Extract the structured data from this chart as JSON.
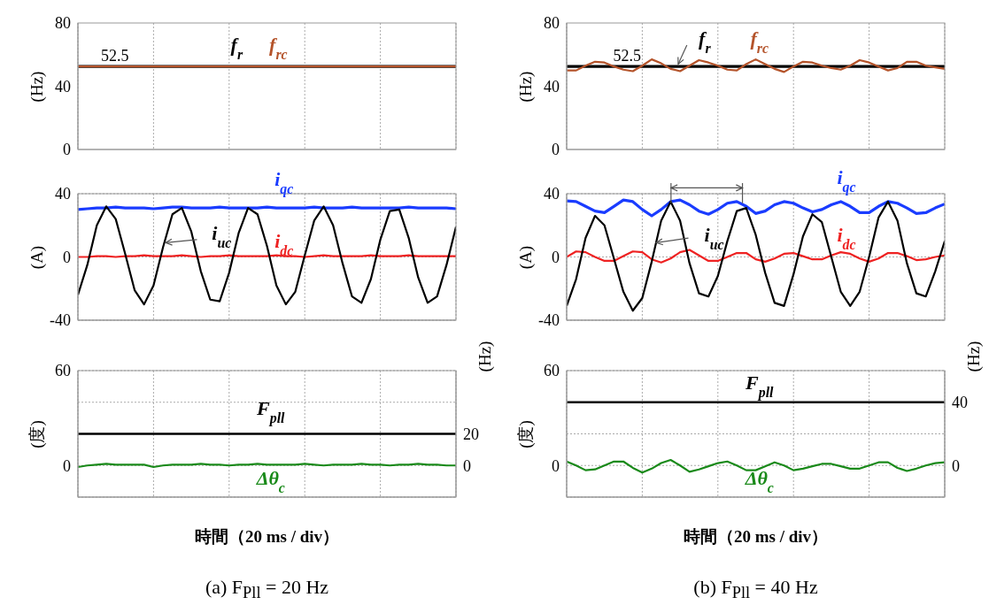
{
  "chart_data": [
    {
      "type": "line",
      "ylabel": "(Hz)",
      "categories": [
        null,
        null,
        null,
        null,
        null,
        null,
        null,
        null,
        null,
        null,
        null,
        null,
        null,
        null,
        null,
        null,
        null,
        null,
        null,
        null,
        null,
        null,
        null,
        null,
        null,
        null,
        null,
        null,
        null,
        null,
        null,
        null,
        null,
        null,
        null,
        null,
        null,
        null,
        null,
        null,
        null
      ],
      "ylim": [
        0,
        80
      ],
      "yticks": [
        0,
        40,
        80
      ],
      "grid": "x",
      "annotations": [
        {
          "text": "52.5",
          "y": 52.5
        }
      ],
      "series": [
        {
          "name": "f$_{r}$",
          "color": "#000000",
          "values": [
            52.5,
            52.5,
            52.5,
            52.5,
            52.5,
            52.5,
            52.5,
            52.5,
            52.5,
            52.5,
            52.5,
            52.5,
            52.5,
            52.5,
            52.5,
            52.5,
            52.5,
            52.5,
            52.5,
            52.5,
            52.5,
            52.5,
            52.5,
            52.5,
            52.5,
            52.5,
            52.5,
            52.5,
            52.5,
            52.5,
            52.5,
            52.5,
            52.5,
            52.5,
            52.5,
            52.5,
            52.5,
            52.5,
            52.5,
            52.5,
            52.5
          ]
        },
        {
          "name": "f$_{rc}$",
          "color": "#b4532a",
          "values": [
            52.5,
            52.5,
            52.5,
            52.5,
            52.5,
            52.5,
            52.5,
            52.5,
            52.5,
            52.5,
            52.5,
            52.5,
            52.5,
            52.5,
            52.5,
            52.5,
            52.5,
            52.5,
            52.5,
            52.5,
            52.5,
            52.5,
            52.5,
            52.5,
            52.5,
            52.5,
            52.5,
            52.5,
            52.5,
            52.5,
            52.5,
            52.5,
            52.5,
            52.5,
            52.5,
            52.5,
            52.5,
            52.5,
            52.5,
            52.5,
            52.5
          ]
        }
      ]
    },
    {
      "type": "line",
      "ylabel": "(A)",
      "categories": [
        null,
        null,
        null,
        null,
        null,
        null,
        null,
        null,
        null,
        null,
        null,
        null,
        null,
        null,
        null,
        null,
        null,
        null,
        null,
        null,
        null,
        null,
        null,
        null,
        null,
        null,
        null,
        null,
        null,
        null,
        null,
        null,
        null,
        null,
        null,
        null,
        null,
        null,
        null,
        null,
        null
      ],
      "ylim": [
        -40,
        40
      ],
      "yticks": [
        -40,
        0,
        40
      ],
      "grid": true,
      "series": [
        {
          "name": "i$_{qc}$",
          "color": "#1a3cff",
          "values": [
            30,
            30.5,
            31,
            31,
            31.5,
            31,
            31,
            31,
            30.5,
            31,
            31.5,
            31.5,
            31,
            31,
            31,
            31.5,
            31,
            31,
            31,
            31,
            31.5,
            31,
            31,
            31,
            31,
            31.5,
            31,
            31,
            31,
            31.5,
            31,
            31,
            31,
            31,
            31,
            31.5,
            31,
            31,
            31,
            31,
            30.5
          ]
        },
        {
          "name": "i$_{dc}$",
          "color": "#ee2222",
          "values": [
            0,
            0,
            0.5,
            0.5,
            0,
            0.5,
            0.5,
            1,
            0.5,
            0.5,
            0.5,
            1,
            0.5,
            0,
            0.5,
            0.5,
            1,
            0.5,
            0.5,
            0.5,
            0.5,
            1,
            0.5,
            0.5,
            0,
            0.5,
            1,
            0.5,
            0.5,
            0.5,
            0.5,
            1,
            0.5,
            0.5,
            0.5,
            1,
            0.5,
            0.5,
            0.5,
            0.5,
            0.5
          ]
        },
        {
          "name": "i$_{uc}$",
          "color": "#000000",
          "values": [
            -24,
            -5,
            20,
            32,
            24,
            2,
            -21,
            -30,
            -18,
            6,
            27,
            31,
            16,
            -9,
            -27,
            -28,
            -10,
            15,
            31,
            27,
            7,
            -18,
            -30,
            -22,
            1,
            23,
            32,
            20,
            -4,
            -25,
            -29,
            -14,
            11,
            29,
            30,
            12,
            -13,
            -29,
            -25,
            -5,
            19
          ]
        }
      ]
    },
    {
      "type": "line",
      "ylabel": "(度)",
      "y2label": "(Hz)",
      "xlabel": "時間（20 ms / div）",
      "categories": [
        null,
        null,
        null,
        null,
        null,
        null,
        null,
        null,
        null,
        null,
        null,
        null,
        null,
        null,
        null,
        null,
        null,
        null,
        null,
        null,
        null,
        null,
        null,
        null,
        null,
        null,
        null,
        null,
        null,
        null,
        null,
        null,
        null,
        null,
        null,
        null,
        null,
        null,
        null,
        null,
        null
      ],
      "ylim": [
        -20,
        60
      ],
      "yticks": [
        {
          "value": -20,
          "label": null
        },
        0,
        {
          "value": 40,
          "label": null
        },
        60
      ],
      "y2lim": [
        -20,
        60
      ],
      "y2ticks": [
        0,
        20
      ],
      "grid": true,
      "annotations": [
        "(a) F$_{Pll}$ = 20 Hz"
      ],
      "series": [
        {
          "name": "F$_{pll}$",
          "color": "#000000",
          "axis": "y2",
          "values": [
            20,
            20,
            20,
            20,
            20,
            20,
            20,
            20,
            20,
            20,
            20,
            20,
            20,
            20,
            20,
            20,
            20,
            20,
            20,
            20,
            20,
            20,
            20,
            20,
            20,
            20,
            20,
            20,
            20,
            20,
            20,
            20,
            20,
            20,
            20,
            20,
            20,
            20,
            20,
            20,
            20
          ]
        },
        {
          "name": "Δθ$_{c}$",
          "color": "#1a8a1a",
          "values": [
            -1,
            0,
            0.5,
            1,
            0.5,
            0.5,
            0.5,
            0.5,
            -1,
            0,
            0.5,
            0.5,
            0.5,
            1,
            0.5,
            0.5,
            0,
            0.5,
            0.5,
            1,
            0.5,
            0.5,
            0.5,
            0.5,
            1,
            0.5,
            0,
            0.5,
            0.5,
            0.5,
            1,
            0.5,
            0.5,
            0,
            0.5,
            0.5,
            1,
            0.5,
            0.5,
            0,
            0
          ]
        }
      ]
    },
    {
      "type": "line",
      "ylabel": "(Hz)",
      "categories": [
        null,
        null,
        null,
        null,
        null,
        null,
        null,
        null,
        null,
        null,
        null,
        null,
        null,
        null,
        null,
        null,
        null,
        null,
        null,
        null,
        null,
        null,
        null,
        null,
        null,
        null,
        null,
        null,
        null,
        null,
        null,
        null,
        null,
        null,
        null,
        null,
        null,
        null,
        null,
        null,
        null
      ],
      "ylim": [
        0,
        80
      ],
      "yticks": [
        0,
        40,
        80
      ],
      "grid": "x",
      "annotations": [
        {
          "text": "52.5",
          "y": 52.5
        }
      ],
      "series": [
        {
          "name": "f$_{r}$",
          "color": "#000000",
          "values": [
            52.5,
            52.5,
            52.5,
            52.5,
            52.5,
            52.5,
            52.5,
            52.5,
            52.5,
            52.5,
            52.5,
            52.5,
            52.5,
            52.5,
            52.5,
            52.5,
            52.5,
            52.5,
            52.5,
            52.5,
            52.5,
            52.5,
            52.5,
            52.5,
            52.5,
            52.5,
            52.5,
            52.5,
            52.5,
            52.5,
            52.5,
            52.5,
            52.5,
            52.5,
            52.5,
            52.5,
            52.5,
            52.5,
            52.5,
            52.5,
            52.5
          ]
        },
        {
          "name": "f$_{rc}$",
          "color": "#b4532a",
          "values": [
            50,
            50,
            53,
            55.5,
            55,
            52.5,
            50.5,
            49.5,
            53,
            57,
            54.5,
            51,
            49.5,
            53,
            56.5,
            55,
            53,
            50.5,
            50,
            54,
            57,
            54,
            51,
            49,
            52.5,
            55.5,
            55,
            53,
            51.5,
            50.5,
            53,
            56.5,
            55,
            52.5,
            50,
            51.5,
            55.5,
            55.5,
            53,
            52,
            51
          ]
        }
      ]
    },
    {
      "type": "line",
      "ylabel": "(A)",
      "categories": [
        null,
        null,
        null,
        null,
        null,
        null,
        null,
        null,
        null,
        null,
        null,
        null,
        null,
        null,
        null,
        null,
        null,
        null,
        null,
        null,
        null,
        null,
        null,
        null,
        null,
        null,
        null,
        null,
        null,
        null,
        null,
        null,
        null,
        null,
        null,
        null,
        null,
        null,
        null,
        null,
        null
      ],
      "ylim": [
        -40,
        40
      ],
      "yticks": [
        -40,
        0,
        40
      ],
      "grid": true,
      "series": [
        {
          "name": "i$_{qc}$",
          "color": "#1a3cff",
          "values": [
            35.5,
            35,
            32,
            29,
            28,
            32,
            36,
            35,
            30,
            26,
            30,
            35,
            36,
            33,
            29,
            27,
            30,
            34,
            35,
            32,
            27.5,
            29,
            33,
            35,
            34,
            31,
            28.5,
            30,
            33,
            35,
            32,
            28,
            28,
            32,
            35,
            34,
            31,
            27.5,
            28,
            31,
            33.5
          ]
        },
        {
          "name": "i$_{dc}$",
          "color": "#ee2222",
          "values": [
            0,
            3.5,
            3,
            0,
            -2.5,
            -2.5,
            0.5,
            3.5,
            3,
            -1.5,
            -3.5,
            -1,
            3,
            4.5,
            1,
            -2.5,
            -2.5,
            0,
            2.5,
            2.5,
            -1.5,
            -3,
            -1,
            2,
            2.5,
            0.5,
            -1.5,
            -1.5,
            1,
            3,
            2,
            -1,
            -3,
            -1,
            2.5,
            2.5,
            0.5,
            -2,
            -1.5,
            0,
            1
          ]
        },
        {
          "name": "i$_{uc}$",
          "color": "#000000",
          "values": [
            -31,
            -14,
            12,
            26,
            20,
            -1,
            -22,
            -34,
            -26,
            -3,
            23,
            35,
            23,
            -4,
            -23,
            -25,
            -12,
            10,
            29,
            31,
            14,
            -10,
            -29,
            -31,
            -11,
            13,
            27,
            22,
            0,
            -22,
            -31,
            -22,
            0,
            25,
            35,
            23,
            -4,
            -23,
            -25,
            -9,
            10
          ]
        }
      ]
    },
    {
      "type": "line",
      "ylabel": "(度)",
      "y2label": "(Hz)",
      "xlabel": "時間（20 ms / div）",
      "categories": [
        null,
        null,
        null,
        null,
        null,
        null,
        null,
        null,
        null,
        null,
        null,
        null,
        null,
        null,
        null,
        null,
        null,
        null,
        null,
        null,
        null,
        null,
        null,
        null,
        null,
        null,
        null,
        null,
        null,
        null,
        null,
        null,
        null,
        null,
        null,
        null,
        null,
        null,
        null,
        null,
        null
      ],
      "ylim": [
        -20,
        60
      ],
      "yticks": [
        {
          "value": -20,
          "label": null
        },
        0,
        {
          "value": 20,
          "label": null
        },
        60
      ],
      "y2lim": [
        -20,
        60
      ],
      "y2ticks": [
        0,
        40
      ],
      "grid": true,
      "annotations": [
        "(b) F$_{Pll}$ = 40 Hz"
      ],
      "series": [
        {
          "name": "F$_{pll}$",
          "color": "#000000",
          "axis": "y2",
          "values": [
            40,
            40,
            40,
            40,
            40,
            40,
            40,
            40,
            40,
            40,
            40,
            40,
            40,
            40,
            40,
            40,
            40,
            40,
            40,
            40,
            40,
            40,
            40,
            40,
            40,
            40,
            40,
            40,
            40,
            40,
            40,
            40,
            40,
            40,
            40,
            40,
            40,
            40,
            40,
            40,
            40
          ]
        },
        {
          "name": "Δθ$_{c}$",
          "color": "#1a8a1a",
          "values": [
            2.5,
            0,
            -3,
            -2.5,
            0,
            2.5,
            2.5,
            -1.5,
            -4.5,
            -2,
            1.5,
            3.5,
            0,
            -4,
            -2.5,
            -0.5,
            1.5,
            2.5,
            0,
            -3,
            -3,
            -0.5,
            2,
            0,
            -3,
            -2,
            -0.5,
            1,
            1,
            -0.5,
            -2,
            -2,
            0,
            2,
            2,
            -1.5,
            -3.5,
            -2,
            0,
            1.5,
            2
          ]
        }
      ]
    }
  ]
}
